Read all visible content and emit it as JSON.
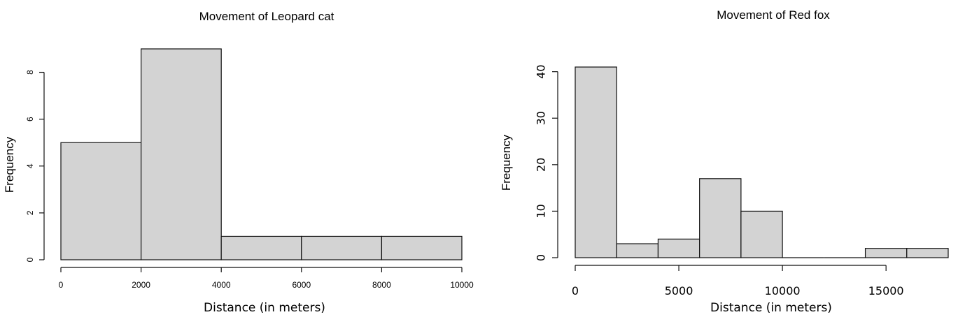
{
  "chart_data": [
    {
      "type": "bar",
      "title": "Movement of Leopard cat",
      "xlabel": "Distance (in meters)",
      "ylabel": "Frequency",
      "bins": [
        {
          "from": 0,
          "to": 2000,
          "count": 5
        },
        {
          "from": 2000,
          "to": 4000,
          "count": 9
        },
        {
          "from": 4000,
          "to": 6000,
          "count": 1
        },
        {
          "from": 6000,
          "to": 8000,
          "count": 1
        },
        {
          "from": 8000,
          "to": 10000,
          "count": 1
        }
      ],
      "x_ticks": [
        "0",
        "2000",
        "4000",
        "6000",
        "8000",
        "10000"
      ],
      "x_tick_values": [
        0,
        2000,
        4000,
        6000,
        8000,
        10000
      ],
      "y_ticks": [
        "0",
        "2",
        "4",
        "6",
        "8"
      ],
      "y_tick_values": [
        0,
        2,
        4,
        6,
        8
      ],
      "xlim": [
        0,
        10000
      ],
      "ylim": [
        0,
        9
      ],
      "grid": false
    },
    {
      "type": "bar",
      "title": "Movement of Red fox",
      "xlabel": "Distance (in meters)",
      "ylabel": "Frequency",
      "bins": [
        {
          "from": 0,
          "to": 2000,
          "count": 41
        },
        {
          "from": 2000,
          "to": 4000,
          "count": 3
        },
        {
          "from": 4000,
          "to": 6000,
          "count": 4
        },
        {
          "from": 6000,
          "to": 8000,
          "count": 17
        },
        {
          "from": 8000,
          "to": 10000,
          "count": 10
        },
        {
          "from": 10000,
          "to": 12000,
          "count": 0
        },
        {
          "from": 12000,
          "to": 14000,
          "count": 0
        },
        {
          "from": 14000,
          "to": 16000,
          "count": 2
        },
        {
          "from": 16000,
          "to": 18000,
          "count": 2
        }
      ],
      "x_ticks": [
        "0",
        "5000",
        "10000",
        "15000"
      ],
      "x_tick_values": [
        0,
        5000,
        10000,
        15000
      ],
      "y_ticks": [
        "0",
        "10",
        "20",
        "30",
        "40"
      ],
      "y_tick_values": [
        0,
        10,
        20,
        30,
        40
      ],
      "xlim": [
        0,
        18000
      ],
      "ylim": [
        0,
        41
      ],
      "grid": false
    }
  ],
  "colors": {
    "bar_fill": "#d3d3d3",
    "bar_stroke": "#111111"
  }
}
